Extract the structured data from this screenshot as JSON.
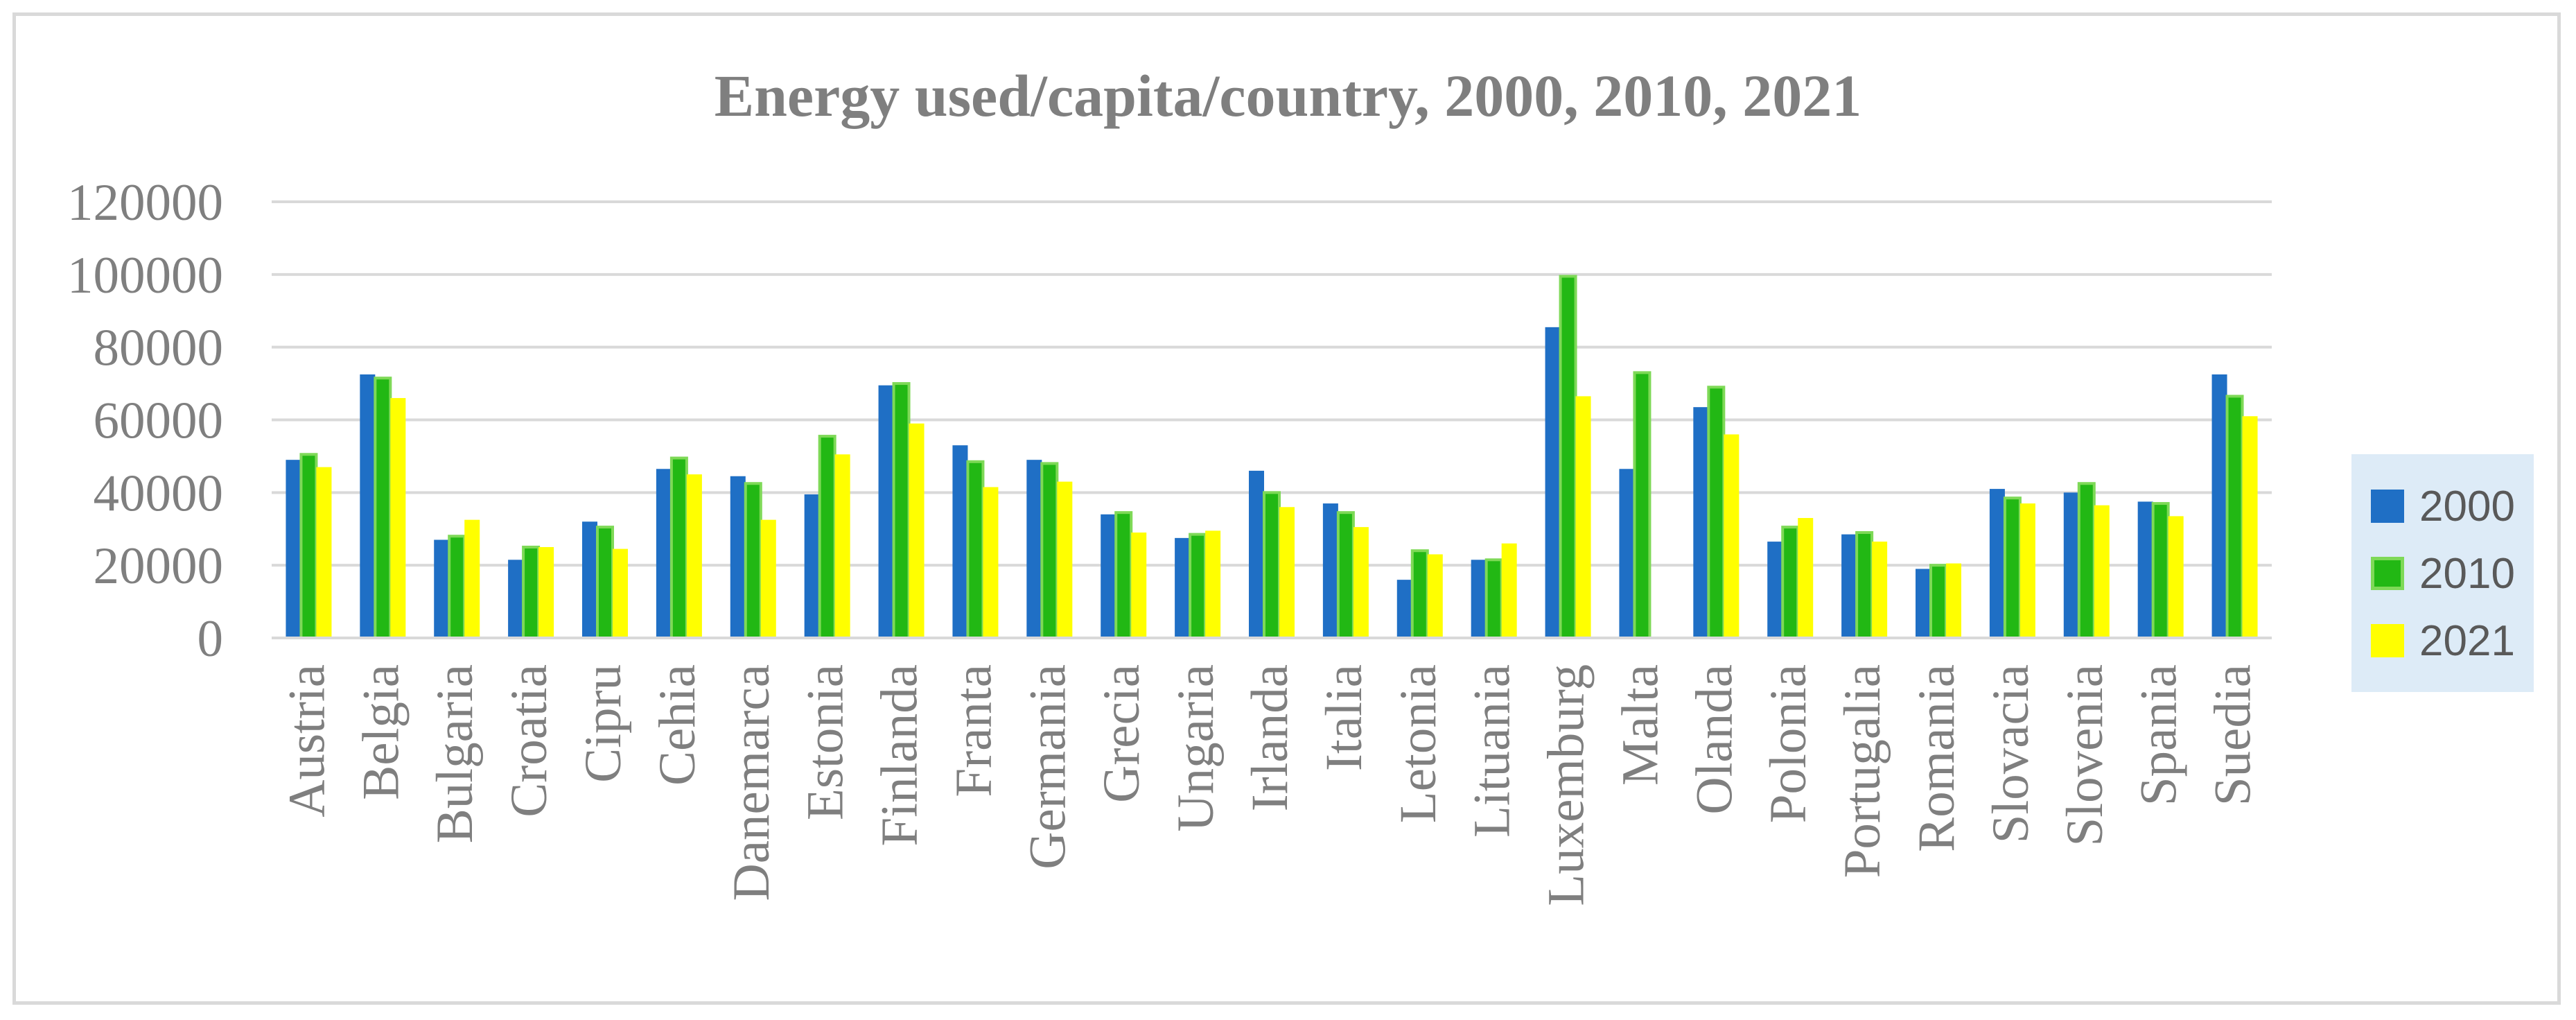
{
  "chart_data": {
    "type": "bar",
    "title": "Energy used/capita/country, 2000, 2010, 2021",
    "xlabel": "",
    "ylabel": "",
    "ylim": [
      0,
      120000
    ],
    "yticks": [
      0,
      20000,
      40000,
      60000,
      80000,
      100000,
      120000
    ],
    "grid": true,
    "legend_position": "right",
    "categories": [
      "Austria",
      "Belgia",
      "Bulgaria",
      "Croatia",
      "Cipru",
      "Cehia",
      "Danemarca",
      "Estonia",
      "Finlanda",
      "Franta",
      "Germania",
      "Grecia",
      "Ungaria",
      "Irlanda",
      "Italia",
      "Letonia",
      "Lituania",
      "Luxemburg",
      "Malta",
      "Olanda",
      "Polonia",
      "Portugalia",
      "Romania",
      "Slovacia",
      "Slovenia",
      "Spania",
      "Suedia"
    ],
    "series": [
      {
        "name": "2000",
        "color": "#1f6fc5",
        "border": "#1f6fc5",
        "values": [
          49000,
          72500,
          27000,
          21500,
          32000,
          46500,
          44500,
          39500,
          69500,
          53000,
          49000,
          34000,
          27500,
          46000,
          37000,
          16000,
          21500,
          85500,
          46500,
          63500,
          26500,
          28500,
          19000,
          41000,
          40000,
          37500,
          72500
        ]
      },
      {
        "name": "2010",
        "color": "#22b814",
        "border": "#7ed957",
        "values": [
          50500,
          71500,
          28000,
          25000,
          30500,
          49500,
          42500,
          55500,
          70000,
          48500,
          48000,
          34500,
          28500,
          40000,
          34500,
          24000,
          21500,
          99500,
          73000,
          69000,
          30500,
          29000,
          20000,
          38500,
          42500,
          37000,
          66500
        ]
      },
      {
        "name": "2021",
        "color": "#ffff00",
        "border": "#ffff00",
        "values": [
          47000,
          66000,
          32500,
          25000,
          24500,
          45000,
          32500,
          50500,
          59000,
          41500,
          43000,
          29000,
          29500,
          36000,
          30500,
          23000,
          26000,
          66500,
          0,
          56000,
          33000,
          26500,
          20500,
          37000,
          36500,
          33500,
          61000
        ]
      }
    ]
  }
}
